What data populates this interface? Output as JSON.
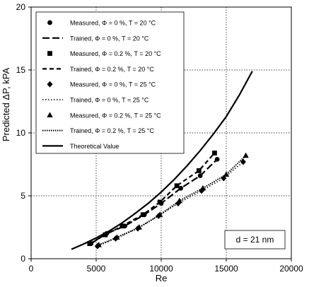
{
  "chart_data": {
    "type": "line",
    "title": "",
    "xlabel": "Re",
    "ylabel": "Predicted ΔP, kPA",
    "xlim": [
      0,
      20000
    ],
    "ylim": [
      0,
      20
    ],
    "x_ticks": [
      0,
      5000,
      10000,
      15000,
      20000
    ],
    "y_ticks": [
      0,
      5,
      10,
      15,
      20
    ],
    "x_tick_labels": [
      "0",
      "5000",
      "10000",
      "15000",
      "20000"
    ],
    "y_tick_labels": [
      "0",
      "5",
      "10",
      "15",
      "20"
    ],
    "grid": true,
    "legend_position": "top-left",
    "annotation": "d = 21 nm",
    "series": [
      {
        "name": "Measured, Φ = 0 %, T = 20 °C",
        "style": "marker",
        "marker": "circle",
        "x": [
          4600,
          5800,
          7200,
          8700,
          10000,
          11500,
          13000,
          14300
        ],
        "y": [
          1.2,
          2.0,
          2.6,
          3.5,
          4.4,
          5.6,
          6.6,
          7.9
        ]
      },
      {
        "name": "Trained, Φ = 0 %, T = 20 °C",
        "style": "longdash",
        "x": [
          4600,
          5800,
          7200,
          8700,
          10000,
          11500,
          13000,
          14300
        ],
        "y": [
          1.2,
          2.0,
          2.6,
          3.5,
          4.4,
          5.6,
          6.6,
          7.9
        ]
      },
      {
        "name": "Measured, Φ = 0.2 %, T = 20 °C",
        "style": "marker",
        "marker": "square",
        "x": [
          4500,
          5700,
          7000,
          8600,
          9900,
          11200,
          12900,
          14100
        ],
        "y": [
          1.2,
          1.9,
          2.6,
          3.5,
          4.5,
          5.8,
          7.0,
          8.4
        ]
      },
      {
        "name": "Trained, Φ = 0.2 %, T = 20 °C",
        "style": "dash",
        "x": [
          4500,
          5700,
          7000,
          8600,
          9900,
          11200,
          12900,
          14100
        ],
        "y": [
          1.2,
          1.9,
          2.6,
          3.5,
          4.5,
          5.8,
          7.0,
          8.4
        ]
      },
      {
        "name": "Measured, Φ = 0 %, T = 25 °C",
        "style": "marker",
        "marker": "diamond",
        "x": [
          5100,
          6500,
          8200,
          9800,
          11300,
          13100,
          14800,
          16300
        ],
        "y": [
          1.0,
          1.6,
          2.4,
          3.4,
          4.4,
          5.4,
          6.4,
          7.7
        ]
      },
      {
        "name": "Trained, Φ = 0 %, T = 25 °C",
        "style": "dot",
        "x": [
          5100,
          6500,
          8200,
          9800,
          11300,
          13100,
          14800,
          16300
        ],
        "y": [
          1.0,
          1.6,
          2.4,
          3.4,
          4.4,
          5.4,
          6.4,
          7.7
        ]
      },
      {
        "name": "Measured, Φ = 0.2 %, T = 25 °C",
        "style": "marker",
        "marker": "triangle",
        "x": [
          5200,
          6600,
          8300,
          9900,
          11400,
          13200,
          15000,
          16500
        ],
        "y": [
          1.1,
          1.7,
          2.5,
          3.5,
          4.6,
          5.6,
          6.7,
          8.2
        ]
      },
      {
        "name": "Trained, Φ = 0.2 %, T = 25 °C",
        "style": "densedot",
        "x": [
          5200,
          6600,
          8300,
          9900,
          11400,
          13200,
          15000,
          16500
        ],
        "y": [
          1.1,
          1.7,
          2.5,
          3.5,
          4.6,
          5.6,
          6.7,
          8.2
        ]
      },
      {
        "name": "Theoretical Value",
        "style": "solid",
        "x": [
          3100,
          4000,
          5000,
          6000,
          7000,
          8000,
          9000,
          10000,
          11000,
          12000,
          13000,
          14000,
          15000,
          16000,
          17000
        ],
        "y": [
          0.75,
          1.15,
          1.65,
          2.2,
          2.85,
          3.6,
          4.4,
          5.3,
          6.3,
          7.4,
          8.6,
          9.9,
          11.3,
          13.0,
          14.9
        ]
      }
    ]
  }
}
